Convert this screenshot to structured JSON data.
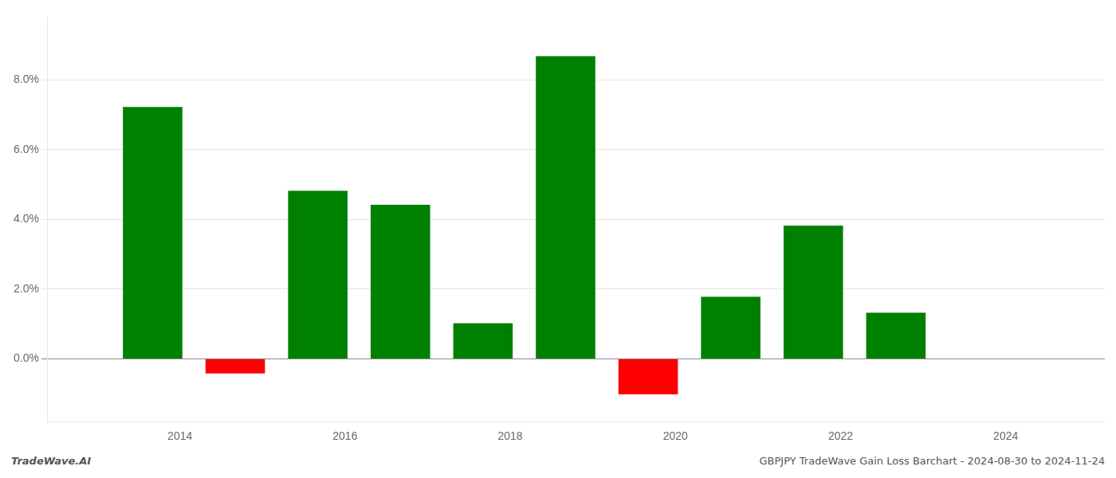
{
  "chart_data": {
    "type": "bar",
    "x": [
      2013.67,
      2014.67,
      2015.67,
      2016.67,
      2017.67,
      2018.67,
      2019.67,
      2020.67,
      2021.67,
      2022.67
    ],
    "values": [
      7.22,
      -0.42,
      4.82,
      4.42,
      1.02,
      8.68,
      -1.02,
      1.78,
      3.82,
      1.32
    ],
    "colors": [
      "#008000",
      "#ff0000",
      "#008000",
      "#008000",
      "#008000",
      "#008000",
      "#ff0000",
      "#008000",
      "#008000",
      "#008000"
    ],
    "xlim": [
      2012.4,
      2025.2
    ],
    "xticks": [
      2014,
      2016,
      2018,
      2020,
      2022,
      2024
    ],
    "ylim": [
      -1.8,
      9.8
    ],
    "yticks": [
      {
        "value": 0.0,
        "label": "0.0%"
      },
      {
        "value": 2.0,
        "label": "2.0%"
      },
      {
        "value": 4.0,
        "label": "4.0%"
      },
      {
        "value": 6.0,
        "label": "6.0%"
      },
      {
        "value": 8.0,
        "label": "8.0%"
      }
    ],
    "grid": "y",
    "annotations": [
      "TradeWave.AI",
      "GBPJPY TradeWave Gain Loss Barchart - 2024-08-30 to 2024-11-24"
    ]
  }
}
